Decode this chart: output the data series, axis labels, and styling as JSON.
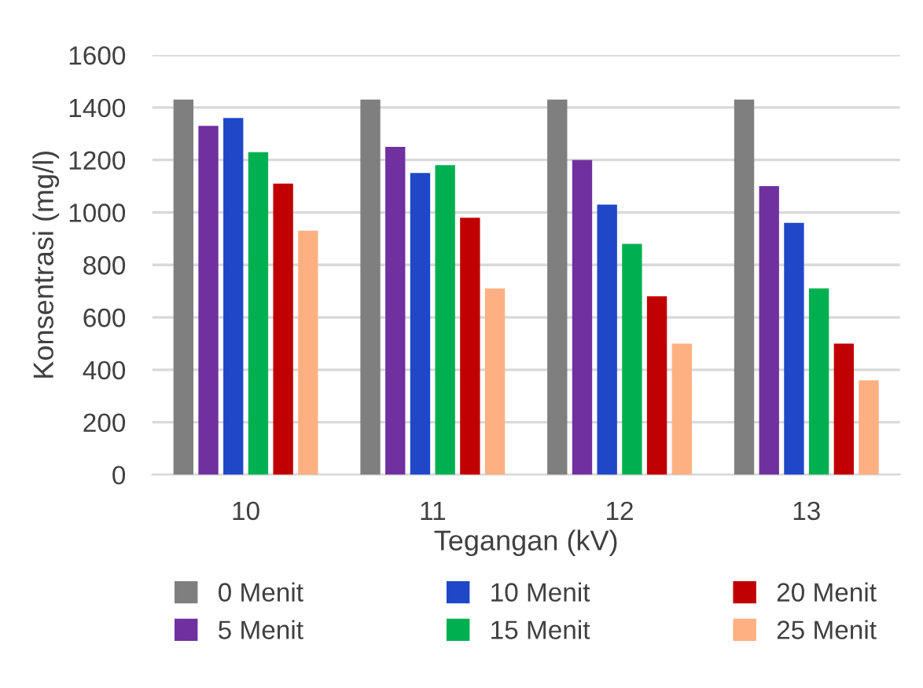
{
  "chart_data": {
    "type": "bar",
    "xlabel": "Tegangan (kV)",
    "ylabel": "Konsentrasi (mg/l)",
    "categories": [
      "10",
      "11",
      "12",
      "13"
    ],
    "series": [
      {
        "name": "0 Menit",
        "color": "#7f7f7f",
        "values": [
          1430,
          1430,
          1430,
          1430
        ]
      },
      {
        "name": "5 Menit",
        "color": "#7030a0",
        "values": [
          1330,
          1250,
          1200,
          1100
        ]
      },
      {
        "name": "10 Menit",
        "color": "#1f47c8",
        "values": [
          1360,
          1150,
          1030,
          960
        ]
      },
      {
        "name": "15 Menit",
        "color": "#00b050",
        "values": [
          1230,
          1180,
          880,
          710
        ]
      },
      {
        "name": "20 Menit",
        "color": "#c00000",
        "values": [
          1110,
          980,
          680,
          500
        ]
      },
      {
        "name": "25 Menit",
        "color": "#ffb082",
        "values": [
          930,
          710,
          500,
          360
        ]
      }
    ],
    "ylim": [
      0,
      1600
    ],
    "yticks": [
      0,
      200,
      400,
      600,
      800,
      1000,
      1200,
      1400,
      1600
    ],
    "grid": "y",
    "legend": "bottom"
  }
}
